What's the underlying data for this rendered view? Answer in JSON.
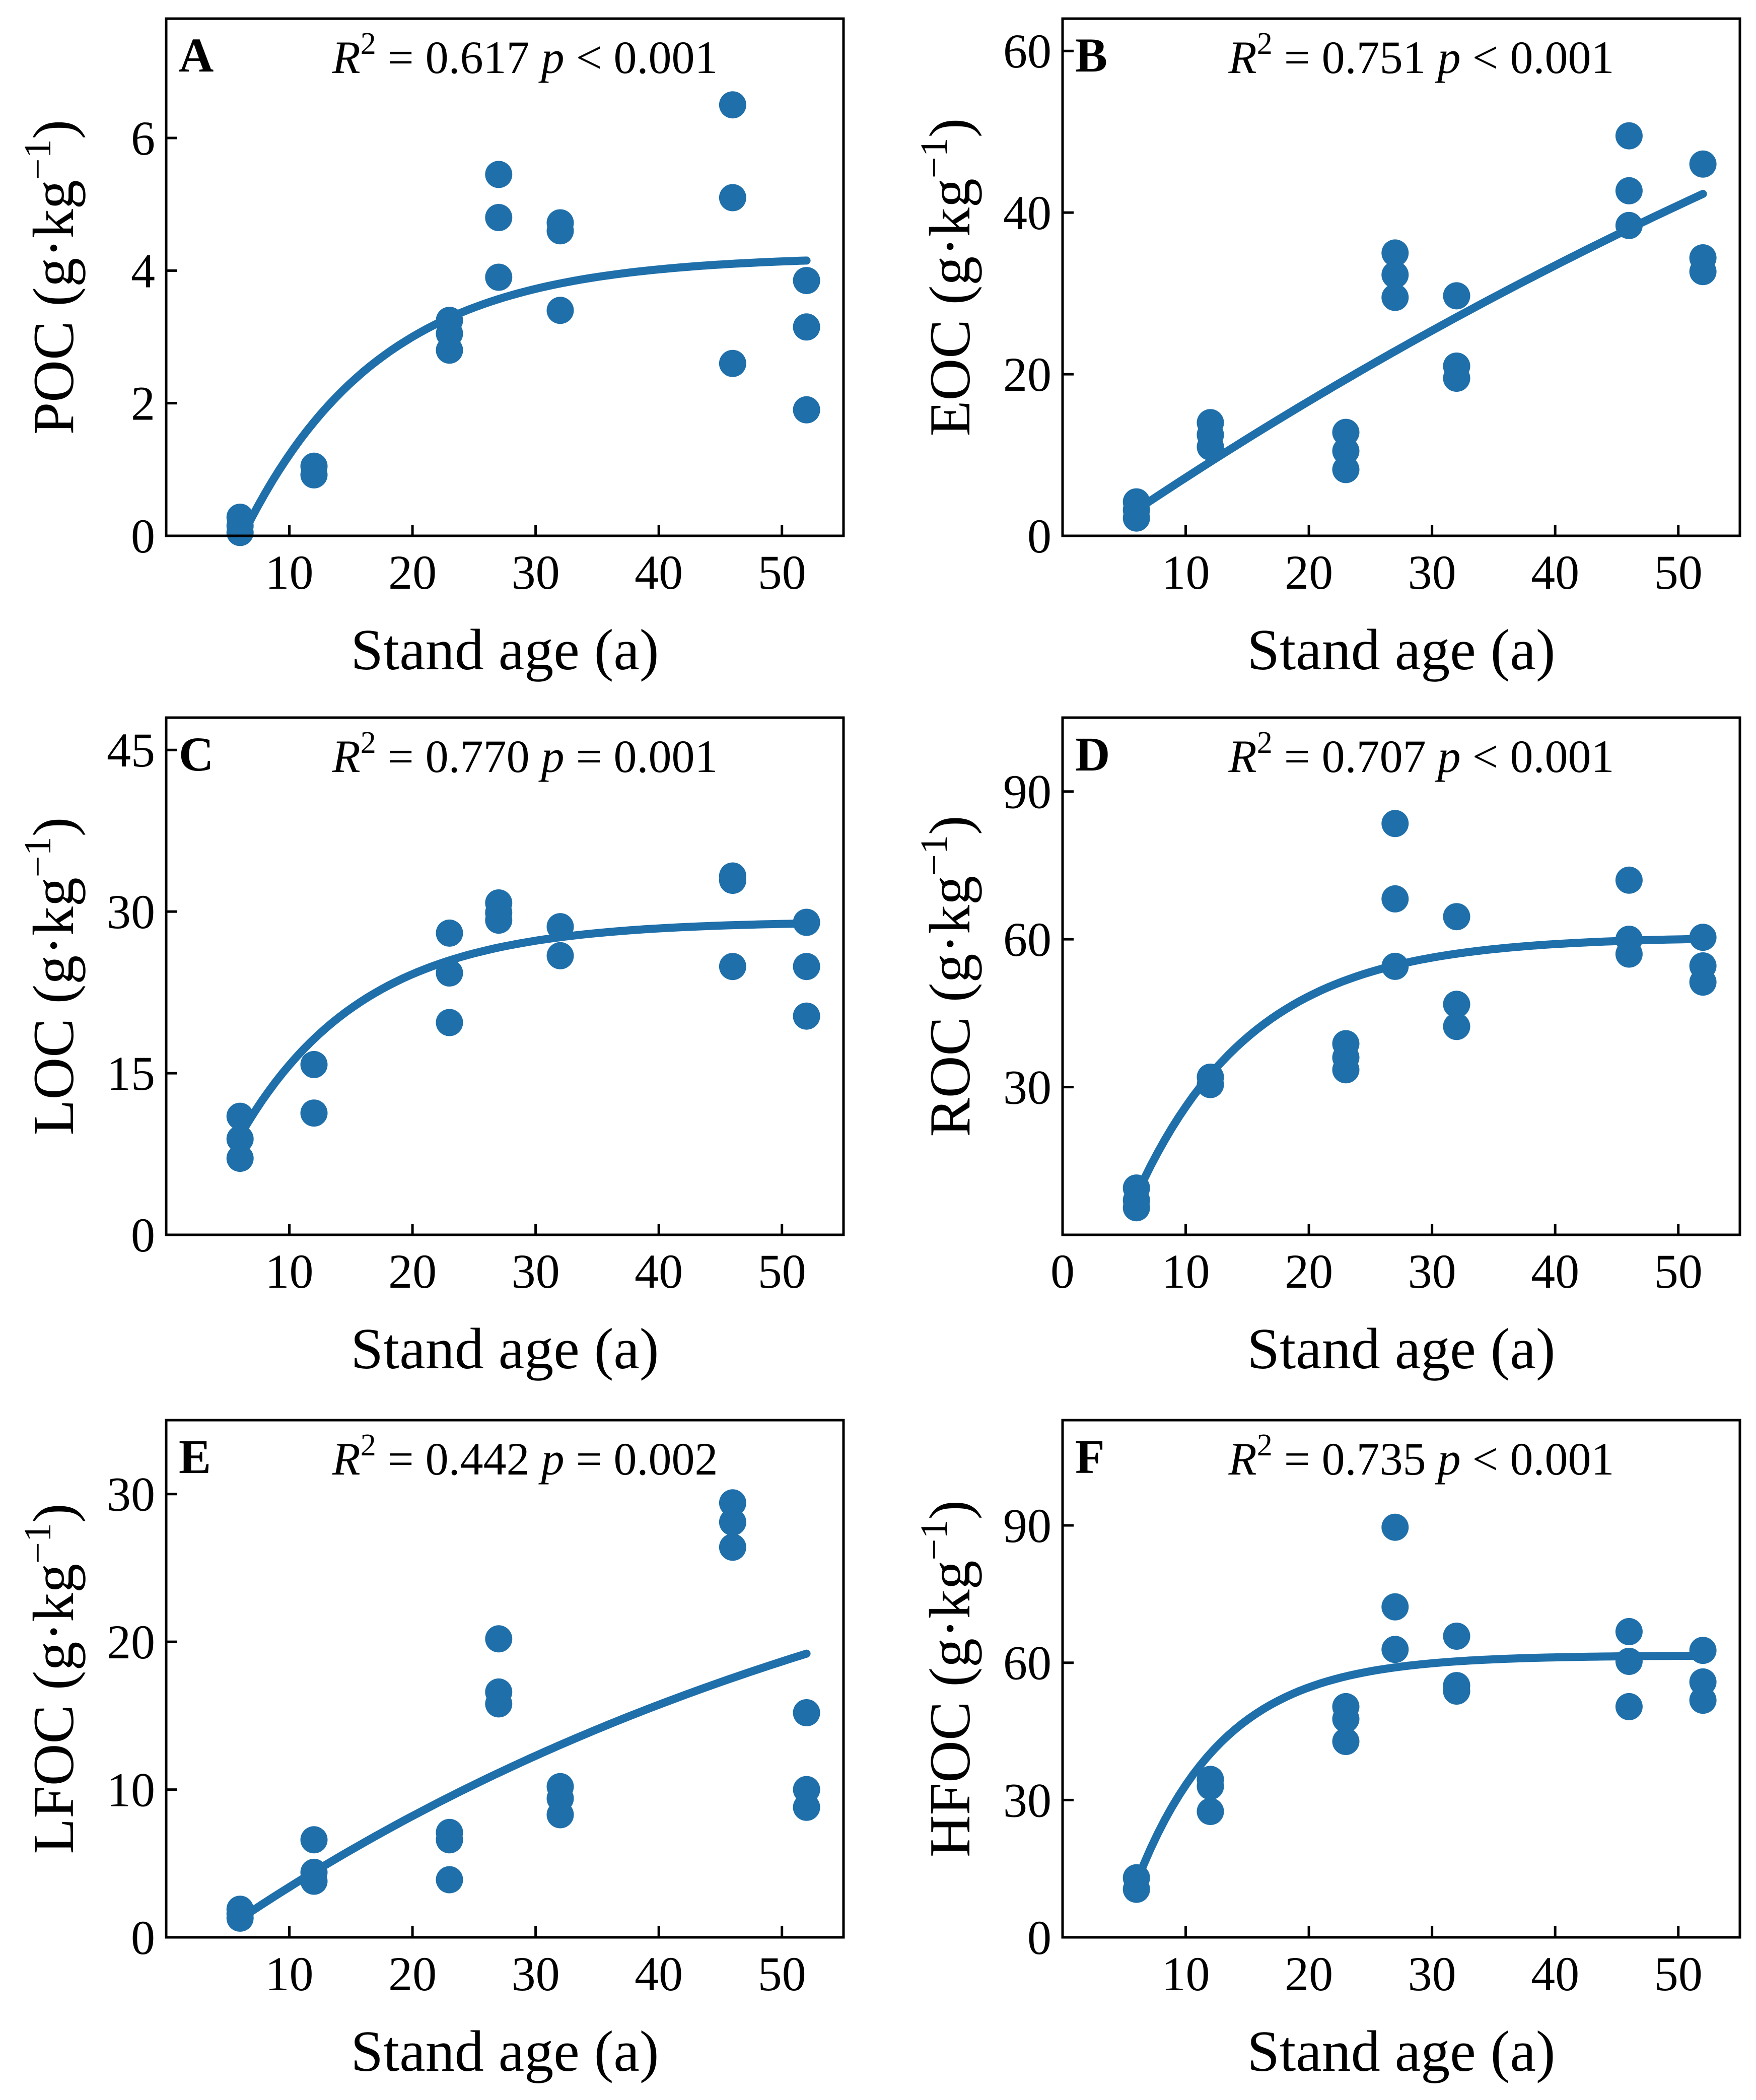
{
  "figure": {
    "marker_color": "#1F6FAA",
    "axis_color": "#000000"
  },
  "chart_data": [
    {
      "id": "A",
      "type": "scatter",
      "letter": "A",
      "xlabel": "Stand age (a)",
      "ylabel_main": "POC",
      "ylabel_unit": "(g·kg",
      "ylabel_exp": "−1",
      "ylabel_close": ")",
      "stats": {
        "r2_label": "R",
        "r2_exp": "2",
        "r2_value": " = 0.617 ",
        "p_label": "p",
        "p_value": " < 0.001"
      },
      "xlim": [
        0,
        55
      ],
      "ylim": [
        0,
        7.8
      ],
      "xticks": [
        10,
        20,
        30,
        40,
        50
      ],
      "yticks": [
        0,
        2,
        4,
        6
      ],
      "xtick_labels": [
        "10",
        "20",
        "30",
        "40",
        "50"
      ],
      "ytick_labels": [
        "0",
        "2",
        "4",
        "6"
      ],
      "points": [
        [
          6,
          0.05
        ],
        [
          6,
          0.15
        ],
        [
          6,
          0.28
        ],
        [
          12,
          0.92
        ],
        [
          12,
          1.05
        ],
        [
          23,
          2.8
        ],
        [
          23,
          3.05
        ],
        [
          23,
          3.25
        ],
        [
          27,
          3.9
        ],
        [
          27,
          4.8
        ],
        [
          27,
          5.45
        ],
        [
          32,
          3.4
        ],
        [
          32,
          4.6
        ],
        [
          32,
          4.72
        ],
        [
          46,
          2.6
        ],
        [
          46,
          5.1
        ],
        [
          46,
          6.5
        ],
        [
          52,
          1.9
        ],
        [
          52,
          3.15
        ],
        [
          52,
          3.85
        ]
      ],
      "fit": {
        "form": "a*(1-exp(-b*(x-c)))",
        "a": 4.22,
        "b": 0.09,
        "c": 6.2,
        "xrange": [
          6.3,
          52
        ]
      }
    },
    {
      "id": "B",
      "type": "scatter",
      "letter": "B",
      "xlabel": "Stand age (a)",
      "ylabel_main": "EOC",
      "ylabel_unit": "(g·kg",
      "ylabel_exp": "−1",
      "ylabel_close": ")",
      "stats": {
        "r2_label": "R",
        "r2_exp": "2",
        "r2_value": " = 0.751 ",
        "p_label": "p",
        "p_value": " < 0.001"
      },
      "xlim": [
        0,
        55
      ],
      "ylim": [
        0,
        64
      ],
      "xticks": [
        10,
        20,
        30,
        40,
        50
      ],
      "yticks": [
        0,
        20,
        40,
        60
      ],
      "xtick_labels": [
        "10",
        "20",
        "30",
        "40",
        "50"
      ],
      "ytick_labels": [
        "0",
        "20",
        "40",
        "60"
      ],
      "points": [
        [
          6,
          2.2
        ],
        [
          6,
          3.2
        ],
        [
          6,
          4.2
        ],
        [
          12,
          11
        ],
        [
          12,
          12.5
        ],
        [
          12,
          14
        ],
        [
          23,
          8.2
        ],
        [
          23,
          10.5
        ],
        [
          23,
          12.8
        ],
        [
          27,
          29.5
        ],
        [
          27,
          32.3
        ],
        [
          27,
          35
        ],
        [
          32,
          19.5
        ],
        [
          32,
          21
        ],
        [
          32,
          29.7
        ],
        [
          46,
          38.4
        ],
        [
          46,
          42.7
        ],
        [
          46,
          49.5
        ],
        [
          52,
          32.7
        ],
        [
          52,
          34.4
        ],
        [
          52,
          46
        ]
      ],
      "fit": {
        "form": "a*(1-exp(-b*(x-c)))",
        "a": 130,
        "b": 0.00802,
        "c": 2.9,
        "xrange": [
          6,
          52
        ]
      }
    },
    {
      "id": "C",
      "type": "scatter",
      "letter": "C",
      "xlabel": "Stand age (a)",
      "ylabel_main": "LOC",
      "ylabel_unit": "(g·kg",
      "ylabel_exp": "−1",
      "ylabel_close": ")",
      "stats": {
        "r2_label": "R",
        "r2_exp": "2",
        "r2_value": " = 0.770 ",
        "p_label": "p",
        "p_value": " = 0.001"
      },
      "xlim": [
        0,
        55
      ],
      "ylim": [
        0,
        48
      ],
      "xticks": [
        10,
        20,
        30,
        40,
        50
      ],
      "yticks": [
        0,
        15,
        30,
        45
      ],
      "xtick_labels": [
        "10",
        "20",
        "30",
        "40",
        "50"
      ],
      "ytick_labels": [
        "0",
        "15",
        "30",
        "45"
      ],
      "points": [
        [
          6,
          7.1
        ],
        [
          6,
          8.9
        ],
        [
          6,
          11
        ],
        [
          12,
          11.3
        ],
        [
          12,
          15.8
        ],
        [
          23,
          19.7
        ],
        [
          23,
          24.3
        ],
        [
          23,
          28
        ],
        [
          27,
          29.2
        ],
        [
          27,
          29.9
        ],
        [
          27,
          30.8
        ],
        [
          32,
          25.9
        ],
        [
          32,
          28.6
        ],
        [
          46,
          24.9
        ],
        [
          46,
          32.9
        ],
        [
          46,
          33.3
        ],
        [
          52,
          20.3
        ],
        [
          52,
          24.9
        ],
        [
          52,
          29
        ]
      ],
      "fit": {
        "form": "a-(a-b)*exp(-k*(x-c))",
        "a": 29.1,
        "b": 9.2,
        "k": 0.1,
        "c": 6,
        "xrange": [
          6,
          52
        ]
      }
    },
    {
      "id": "D",
      "type": "scatter",
      "letter": "D",
      "xlabel": "Stand age (a)",
      "ylabel_main": "ROC",
      "ylabel_unit": "(g·kg",
      "ylabel_exp": "−1",
      "ylabel_close": ")",
      "stats": {
        "r2_label": "R",
        "r2_exp": "2",
        "r2_value": " = 0.707 ",
        "p_label": "p",
        "p_value": " < 0.001"
      },
      "xlim": [
        0,
        55
      ],
      "ylim": [
        0,
        105
      ],
      "xticks": [
        0,
        10,
        20,
        30,
        40,
        50
      ],
      "yticks": [
        30,
        60,
        90
      ],
      "xtick_labels": [
        "0",
        "10",
        "20",
        "30",
        "40",
        "50"
      ],
      "ytick_labels": [
        "30",
        "60",
        "90"
      ],
      "points": [
        [
          6,
          5.5
        ],
        [
          6,
          7
        ],
        [
          6,
          9.5
        ],
        [
          12,
          30.5
        ],
        [
          12,
          32
        ],
        [
          23,
          33.5
        ],
        [
          23,
          36
        ],
        [
          23,
          38.8
        ],
        [
          27,
          54.5
        ],
        [
          27,
          68.2
        ],
        [
          27,
          83.5
        ],
        [
          32,
          42.3
        ],
        [
          32,
          46.8
        ],
        [
          32,
          64.6
        ],
        [
          46,
          57
        ],
        [
          46,
          60
        ],
        [
          46,
          72
        ],
        [
          52,
          51.3
        ],
        [
          52,
          54.6
        ],
        [
          52,
          60.4
        ]
      ],
      "fit": {
        "form": "a-(a-b)*exp(-k*(x-c))",
        "a": 60.5,
        "b": 8,
        "k": 0.105,
        "c": 6,
        "xrange": [
          6,
          52
        ]
      }
    },
    {
      "id": "E",
      "type": "scatter",
      "letter": "E",
      "xlabel": "Stand age (a)",
      "ylabel_main": "LFOC",
      "ylabel_unit": "(g·kg",
      "ylabel_exp": "−1",
      "ylabel_close": ")",
      "stats": {
        "r2_label": "R",
        "r2_exp": "2",
        "r2_value": " = 0.442 ",
        "p_label": "p",
        "p_value": " = 0.002"
      },
      "xlim": [
        0,
        55
      ],
      "ylim": [
        0,
        35
      ],
      "xticks": [
        10,
        20,
        30,
        40,
        50
      ],
      "yticks": [
        0,
        10,
        20,
        30
      ],
      "xtick_labels": [
        "10",
        "20",
        "30",
        "40",
        "50"
      ],
      "ytick_labels": [
        "0",
        "10",
        "20",
        "30"
      ],
      "points": [
        [
          6,
          1.3
        ],
        [
          6,
          1.6
        ],
        [
          6,
          1.9
        ],
        [
          12,
          3.8
        ],
        [
          12,
          4.4
        ],
        [
          12,
          6.6
        ],
        [
          23,
          3.9
        ],
        [
          23,
          6.6
        ],
        [
          23,
          7.1
        ],
        [
          27,
          15.8
        ],
        [
          27,
          16.6
        ],
        [
          27,
          20.2
        ],
        [
          32,
          8.3
        ],
        [
          32,
          9.4
        ],
        [
          32,
          10.2
        ],
        [
          46,
          26.4
        ],
        [
          46,
          28.1
        ],
        [
          46,
          29.4
        ],
        [
          52,
          8.8
        ],
        [
          52,
          10
        ],
        [
          52,
          15.2
        ]
      ],
      "fit": {
        "form": "a*(1-exp(-b*(x-c)))",
        "a": 35,
        "b": 0.0165,
        "c": 3.8,
        "xrange": [
          6,
          52
        ]
      }
    },
    {
      "id": "F",
      "type": "scatter",
      "letter": "F",
      "xlabel": "Stand age (a)",
      "ylabel_main": "HFOC",
      "ylabel_unit": "(g·kg",
      "ylabel_exp": "−1",
      "ylabel_close": ")",
      "stats": {
        "r2_label": "R",
        "r2_exp": "2",
        "r2_value": " = 0.735 ",
        "p_label": "p",
        "p_value": " < 0.001"
      },
      "xlim": [
        0,
        55
      ],
      "ylim": [
        0,
        113
      ],
      "xticks": [
        10,
        20,
        30,
        40,
        50
      ],
      "yticks": [
        0,
        30,
        60,
        90
      ],
      "xtick_labels": [
        "10",
        "20",
        "30",
        "40",
        "50"
      ],
      "ytick_labels": [
        "0",
        "30",
        "60",
        "90"
      ],
      "points": [
        [
          6,
          10.5
        ],
        [
          6,
          13
        ],
        [
          12,
          27.5
        ],
        [
          12,
          33
        ],
        [
          12,
          34.5
        ],
        [
          23,
          42.8
        ],
        [
          23,
          47.7
        ],
        [
          23,
          50.4
        ],
        [
          27,
          62.9
        ],
        [
          27,
          72.2
        ],
        [
          27,
          89.6
        ],
        [
          32,
          53.8
        ],
        [
          32,
          55
        ],
        [
          32,
          65.8
        ],
        [
          46,
          50.4
        ],
        [
          46,
          60.3
        ],
        [
          46,
          66.8
        ],
        [
          52,
          51.8
        ],
        [
          52,
          55.8
        ],
        [
          52,
          62.7
        ]
      ],
      "fit": {
        "form": "a-(a-b)*exp(-k*(x-c))",
        "a": 61.6,
        "b": 12,
        "k": 0.14,
        "c": 6,
        "xrange": [
          6,
          52
        ]
      }
    }
  ]
}
